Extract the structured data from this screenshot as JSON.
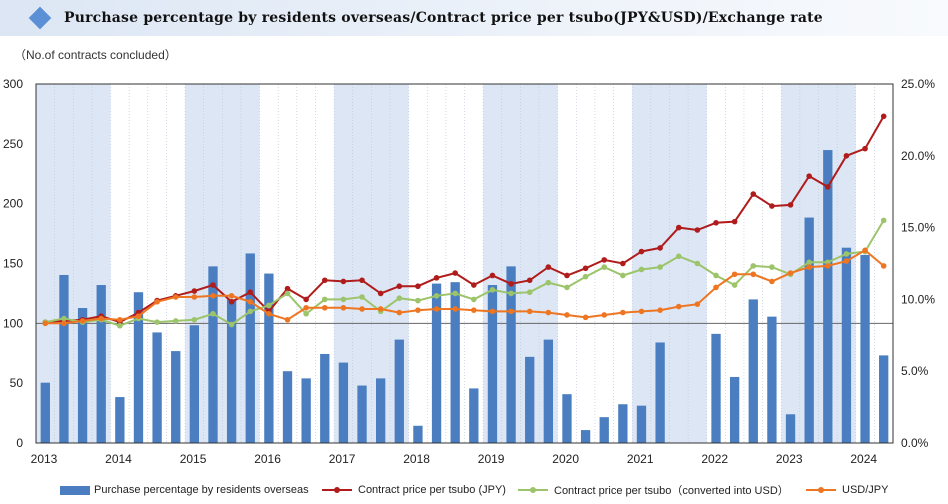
{
  "header": {
    "title": "Purchase percentage by residents overseas/Contract price per tsubo(JPY&USD)/Exchange rate",
    "icon": "diamond-icon"
  },
  "unit_label": "（No.of contracts concluded）",
  "colors": {
    "bars": "#4a7ec0",
    "jpy": "#b01c1c",
    "usd": "#9cc46a",
    "fx": "#ee7622",
    "shade": "#dce6f4"
  },
  "chart_data": {
    "type": "bar+line",
    "left_axis": {
      "min": 0,
      "max": 300,
      "ticks": [
        0,
        50,
        100,
        150,
        200,
        250,
        300
      ],
      "label": "（No.of contracts concluded）"
    },
    "right_axis": {
      "min": 0,
      "max": 25,
      "ticks": [
        "0.0%",
        "5.0%",
        "10.0%",
        "15.0%",
        "20.0%",
        "25.0%"
      ],
      "unit": "%"
    },
    "x_labels": [
      "2013",
      "2014",
      "2015",
      "2016",
      "2017",
      "2018",
      "2019",
      "2020",
      "2021",
      "2022",
      "2023",
      "2024"
    ],
    "quarters_per_year": 4,
    "legend": [
      "Purchase percentage by residents overseas",
      "Contract price per tsubo (JPY)",
      "Contract price per tsubo（converted into USD）",
      "USD/JPY"
    ],
    "series": [
      {
        "name": "Purchase percentage by residents overseas",
        "type": "bar",
        "axis": "right",
        "unit": "%",
        "values": [
          4.2,
          11.7,
          9.4,
          11.0,
          3.2,
          10.5,
          7.7,
          6.4,
          8.2,
          12.3,
          10.0,
          13.2,
          11.8,
          5.0,
          4.5,
          6.2,
          5.6,
          4.0,
          4.5,
          7.2,
          1.2,
          11.1,
          11.2,
          3.8,
          11.0,
          12.3,
          6.0,
          7.2,
          3.4,
          0.9,
          1.8,
          2.7,
          2.6,
          7.0,
          0.0,
          0.0,
          7.6,
          4.6,
          10.0,
          8.8,
          2.0,
          15.7,
          20.4,
          13.6,
          13.1,
          6.1
        ]
      },
      {
        "name": "Contract price per tsubo (JPY)",
        "type": "line",
        "axis": "left",
        "values": [
          101,
          102,
          103,
          106,
          101,
          109,
          119,
          123,
          127,
          132,
          118,
          126,
          110,
          129,
          120,
          136,
          135,
          136,
          125,
          131,
          131,
          138,
          142,
          132,
          140,
          133,
          136,
          147,
          140,
          146,
          153,
          150,
          160,
          163,
          180,
          178,
          184,
          185,
          208,
          198,
          199,
          223,
          214,
          240,
          246,
          273
        ]
      },
      {
        "name": "Contract price per tsubo（converted into USD）",
        "type": "line",
        "axis": "left",
        "values": [
          101,
          104,
          101,
          103,
          98,
          104,
          101,
          102,
          103,
          108,
          99,
          110,
          115,
          125,
          108,
          120,
          120,
          122,
          110,
          121,
          119,
          123,
          125,
          120,
          128,
          125,
          126,
          134,
          130,
          139,
          147,
          140,
          145,
          147,
          156,
          150,
          140,
          132,
          148,
          147,
          141,
          151,
          151,
          158,
          160,
          186
        ]
      },
      {
        "name": "USD/JPY",
        "type": "line",
        "axis": "left",
        "values": [
          100,
          100,
          102,
          104,
          103,
          106,
          118,
          122,
          122,
          123,
          123,
          118,
          108,
          103,
          113,
          113,
          113,
          112,
          112,
          109,
          111,
          112,
          112,
          111,
          110,
          110,
          110,
          109,
          107,
          105,
          107,
          109,
          110,
          111,
          114,
          116,
          130,
          141,
          141,
          135,
          142,
          147,
          148,
          152,
          161,
          148
        ]
      }
    ]
  }
}
